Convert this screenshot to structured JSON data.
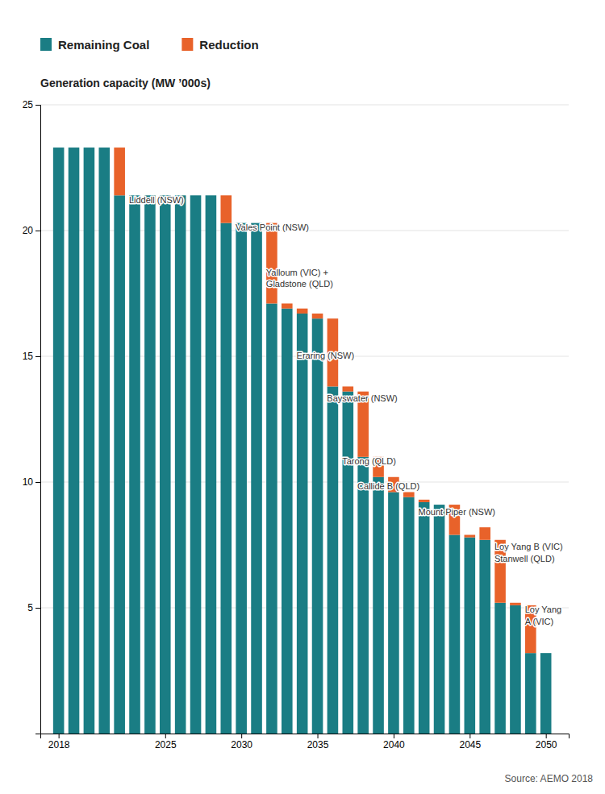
{
  "chart_data": {
    "type": "bar",
    "stacked": true,
    "ylabel": "Generation capacity (MW ’000s)",
    "source": "Source: AEMO 2018",
    "x": [
      2018,
      2019,
      2020,
      2021,
      2022,
      2023,
      2024,
      2025,
      2026,
      2027,
      2028,
      2029,
      2030,
      2031,
      2032,
      2033,
      2034,
      2035,
      2036,
      2037,
      2038,
      2039,
      2040,
      2041,
      2042,
      2043,
      2044,
      2045,
      2046,
      2047,
      2048,
      2049,
      2050
    ],
    "series": [
      {
        "name": "Remaining Coal",
        "color": "#1a7d84",
        "values": [
          23.3,
          23.3,
          23.3,
          23.3,
          21.4,
          21.4,
          21.4,
          21.4,
          21.4,
          21.4,
          21.4,
          20.3,
          20.3,
          20.3,
          17.1,
          16.9,
          16.7,
          16.5,
          13.8,
          13.6,
          11.0,
          10.2,
          9.6,
          9.4,
          9.2,
          9.1,
          7.9,
          7.8,
          7.7,
          5.2,
          5.1,
          3.2,
          3.2
        ]
      },
      {
        "name": "Reduction",
        "color": "#e8622a",
        "values": [
          0,
          0,
          0,
          0,
          1.9,
          0,
          0,
          0,
          0,
          0,
          0,
          1.1,
          0,
          0,
          3.2,
          0.2,
          0.2,
          0.2,
          2.7,
          0.2,
          2.6,
          0.8,
          0.6,
          0.2,
          0.1,
          0,
          1.2,
          0.1,
          0.5,
          2.5,
          0.1,
          1.9,
          0
        ]
      }
    ],
    "xlim": [
      2016.8,
      2051.5
    ],
    "xticks": [
      2018,
      2025,
      2030,
      2035,
      2040,
      2045,
      2050
    ],
    "ylim": [
      0,
      25
    ],
    "yticks": [
      5,
      10,
      15,
      20,
      25
    ],
    "grid": true,
    "legend": "top",
    "annotations": [
      {
        "x": 2022,
        "y": 21.4,
        "text": "Liddell (NSW)"
      },
      {
        "x": 2029,
        "y": 20.3,
        "text": "Vales Point (NSW)"
      },
      {
        "x": 2031,
        "y": 18.5,
        "text": "Yalloum (VIC) +\nGladstone (QLD)"
      },
      {
        "x": 2033,
        "y": 15.2,
        "text": "Eraring (NSW)"
      },
      {
        "x": 2035,
        "y": 13.5,
        "text": "Bayswater (NSW)"
      },
      {
        "x": 2036,
        "y": 11.0,
        "text": "Tarong (QLD)"
      },
      {
        "x": 2037,
        "y": 10.0,
        "text": "Callide B (QLD)"
      },
      {
        "x": 2041,
        "y": 9.0,
        "text": "Mount Piper (NSW)"
      },
      {
        "x": 2046,
        "y": 7.6,
        "text": "Loy Yang B (VIC)\nStanwell (QLD)"
      },
      {
        "x": 2048,
        "y": 5.1,
        "text": "Loy Yang\nA (VIC)"
      }
    ]
  }
}
